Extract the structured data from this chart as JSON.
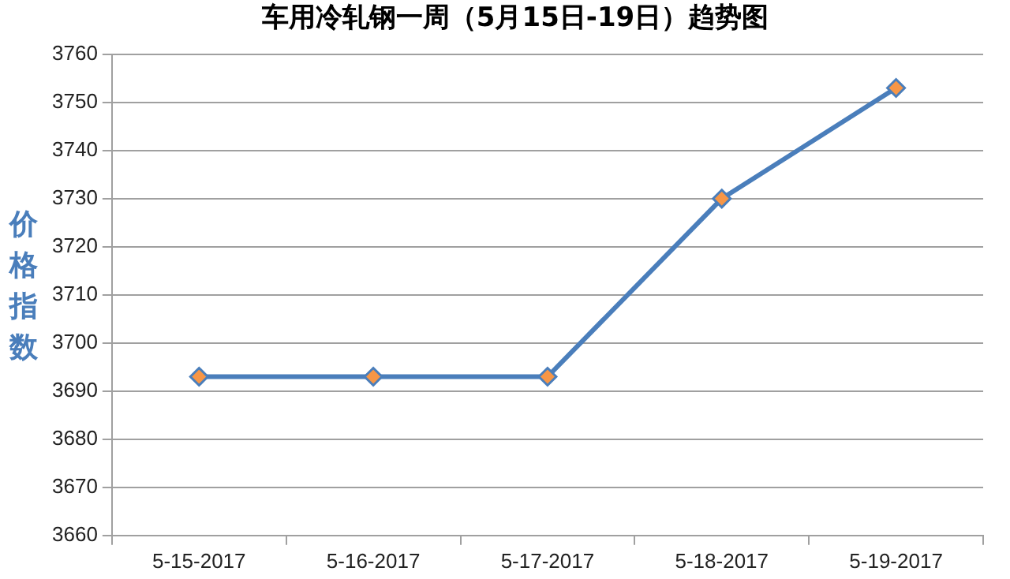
{
  "chart_data": {
    "type": "line",
    "title": "车用冷轧钢一周（5月15日-19日）趋势图",
    "ylabel": "价格指数",
    "categories": [
      "5-15-2017",
      "5-16-2017",
      "5-17-2017",
      "5-18-2017",
      "5-19-2017"
    ],
    "series": [
      {
        "color": "#4a7ebb",
        "values": [
          3693,
          3693,
          3693,
          3730,
          3753
        ]
      }
    ],
    "ylim": [
      3660,
      3760
    ],
    "yticks": [
      3660,
      3670,
      3680,
      3690,
      3700,
      3710,
      3720,
      3730,
      3740,
      3750,
      3760
    ],
    "grid": "y",
    "legend": false,
    "marker": "diamond",
    "line_style": "solid"
  }
}
